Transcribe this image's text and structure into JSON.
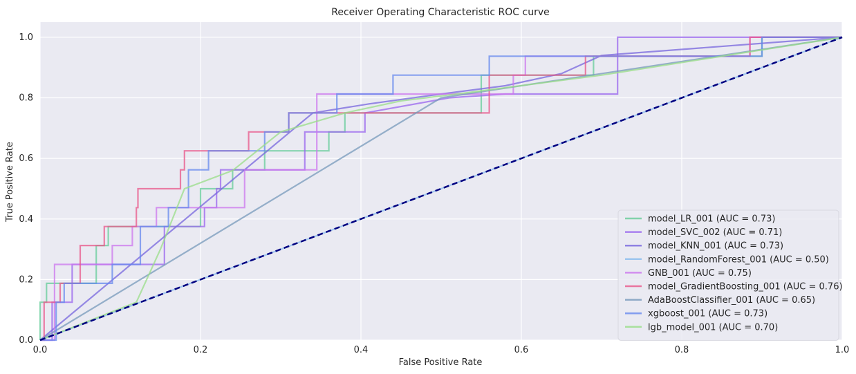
{
  "chart_data": {
    "type": "line",
    "title": "Receiver Operating Characteristic ROC curve",
    "xlabel": "False Positive Rate",
    "ylabel": "True Positive Rate",
    "xlim": [
      0.0,
      1.0
    ],
    "ylim": [
      0.0,
      1.05
    ],
    "xticks": [
      0.0,
      0.2,
      0.4,
      0.6,
      0.8,
      1.0
    ],
    "yticks": [
      0.0,
      0.2,
      0.4,
      0.6,
      0.8,
      1.0
    ],
    "xtick_labels": [
      "0.0",
      "0.2",
      "0.4",
      "0.6",
      "0.8",
      "1.0"
    ],
    "ytick_labels": [
      "0.0",
      "0.2",
      "0.4",
      "0.6",
      "0.8",
      "1.0"
    ],
    "grid": true,
    "background": "#eaeaf2",
    "legend_position": "lower right",
    "series": [
      {
        "name": "model_LR_001 (AUC = 0.73)",
        "color": "#66cc99",
        "x": [
          0,
          0,
          0.008,
          0.008,
          0.07,
          0.07,
          0.085,
          0.085,
          0.2,
          0.2,
          0.24,
          0.24,
          0.28,
          0.28,
          0.36,
          0.36,
          0.38,
          0.38,
          0.55,
          0.55,
          0.69,
          0.69,
          0.9,
          0.9,
          1.0
        ],
        "y": [
          0,
          0.125,
          0.125,
          0.1875,
          0.1875,
          0.3125,
          0.3125,
          0.375,
          0.375,
          0.5,
          0.5,
          0.5625,
          0.5625,
          0.625,
          0.625,
          0.6875,
          0.6875,
          0.75,
          0.75,
          0.875,
          0.875,
          0.9375,
          0.9375,
          1.0,
          1.0
        ]
      },
      {
        "name": "model_SVC_002 (AUC = 0.71)",
        "color": "#9966ee",
        "x": [
          0,
          0.015,
          0.015,
          0.04,
          0.04,
          0.155,
          0.155,
          0.205,
          0.205,
          0.22,
          0.22,
          0.225,
          0.225,
          0.33,
          0.33,
          0.405,
          0.405,
          0.51,
          0.58,
          0.72,
          0.72,
          0.92,
          1.0
        ],
        "y": [
          0,
          0,
          0.125,
          0.125,
          0.25,
          0.25,
          0.375,
          0.375,
          0.4375,
          0.4375,
          0.5,
          0.5,
          0.5625,
          0.5625,
          0.6875,
          0.6875,
          0.75,
          0.8,
          0.8125,
          0.8125,
          1.0,
          1.0,
          1.0
        ]
      },
      {
        "name": "model_KNN_001 (AUC = 0.73)",
        "color": "#7766dd",
        "x": [
          0,
          0.34,
          0.41,
          0.5,
          0.58,
          0.65,
          0.7,
          1.0
        ],
        "y": [
          0,
          0.75,
          0.78,
          0.8125,
          0.84,
          0.88,
          0.94,
          1.0
        ]
      },
      {
        "name": "model_RandomForest_001 (AUC = 0.50)",
        "color": "#88bbee",
        "x": [
          0,
          1.0
        ],
        "y": [
          0,
          1.0
        ]
      },
      {
        "name": "GNB_001 (AUC = 0.75)",
        "color": "#cc77ee",
        "x": [
          0,
          0.018,
          0.018,
          0.09,
          0.09,
          0.115,
          0.115,
          0.145,
          0.145,
          0.255,
          0.255,
          0.345,
          0.345,
          0.45,
          0.45,
          0.59,
          0.59,
          0.605,
          0.605,
          0.885,
          0.885,
          1.0
        ],
        "y": [
          0,
          0,
          0.25,
          0.25,
          0.3125,
          0.3125,
          0.375,
          0.375,
          0.4375,
          0.4375,
          0.5625,
          0.5625,
          0.8125,
          0.8125,
          0.8125,
          0.8125,
          0.875,
          0.875,
          0.9375,
          0.9375,
          1.0,
          1.0
        ]
      },
      {
        "name": "model_GradientBoosting_001 (AUC = 0.76)",
        "color": "#e8578a",
        "x": [
          0,
          0.005,
          0.005,
          0.025,
          0.025,
          0.05,
          0.05,
          0.08,
          0.08,
          0.12,
          0.12,
          0.122,
          0.122,
          0.175,
          0.175,
          0.18,
          0.18,
          0.26,
          0.26,
          0.31,
          0.31,
          0.56,
          0.56,
          0.68,
          0.68,
          0.885,
          0.885,
          1.0
        ],
        "y": [
          0,
          0,
          0.125,
          0.125,
          0.1875,
          0.1875,
          0.3125,
          0.3125,
          0.375,
          0.375,
          0.4375,
          0.4375,
          0.5,
          0.5,
          0.5625,
          0.5625,
          0.625,
          0.625,
          0.6875,
          0.6875,
          0.75,
          0.75,
          0.875,
          0.875,
          0.9375,
          0.9375,
          1.0,
          1.0
        ]
      },
      {
        "name": "AdaBoostClassifier_001 (AUC = 0.65)",
        "color": "#7799bb",
        "x": [
          0,
          0.5,
          1.0
        ],
        "y": [
          0,
          0.8,
          1.0
        ]
      },
      {
        "name": "xgboost_001 (AUC = 0.73)",
        "color": "#6688ee",
        "x": [
          0,
          0.02,
          0.02,
          0.03,
          0.03,
          0.09,
          0.09,
          0.125,
          0.125,
          0.16,
          0.16,
          0.185,
          0.185,
          0.21,
          0.21,
          0.28,
          0.28,
          0.31,
          0.31,
          0.37,
          0.37,
          0.44,
          0.44,
          0.56,
          0.56,
          0.7,
          0.7,
          0.9,
          0.9,
          1.0
        ],
        "y": [
          0,
          0,
          0.125,
          0.125,
          0.1875,
          0.1875,
          0.25,
          0.25,
          0.375,
          0.375,
          0.4375,
          0.4375,
          0.5625,
          0.5625,
          0.625,
          0.625,
          0.6875,
          0.6875,
          0.75,
          0.75,
          0.8125,
          0.8125,
          0.875,
          0.875,
          0.9375,
          0.9375,
          0.9375,
          0.9375,
          1.0,
          1.0
        ]
      },
      {
        "name": "lgb_model_001 (AUC = 0.70)",
        "color": "#99dd88",
        "x": [
          0,
          0.12,
          0.15,
          0.18,
          0.24,
          0.3,
          0.38,
          0.45,
          0.52,
          0.7,
          1.0
        ],
        "y": [
          0,
          0.125,
          0.3,
          0.5,
          0.56,
          0.6875,
          0.75,
          0.79,
          0.8125,
          0.875,
          1.0
        ]
      }
    ],
    "reference_line": {
      "x": [
        0.0,
        1.0
      ],
      "y": [
        0.0,
        1.0
      ],
      "color": "#000080",
      "style": "dashed"
    }
  }
}
